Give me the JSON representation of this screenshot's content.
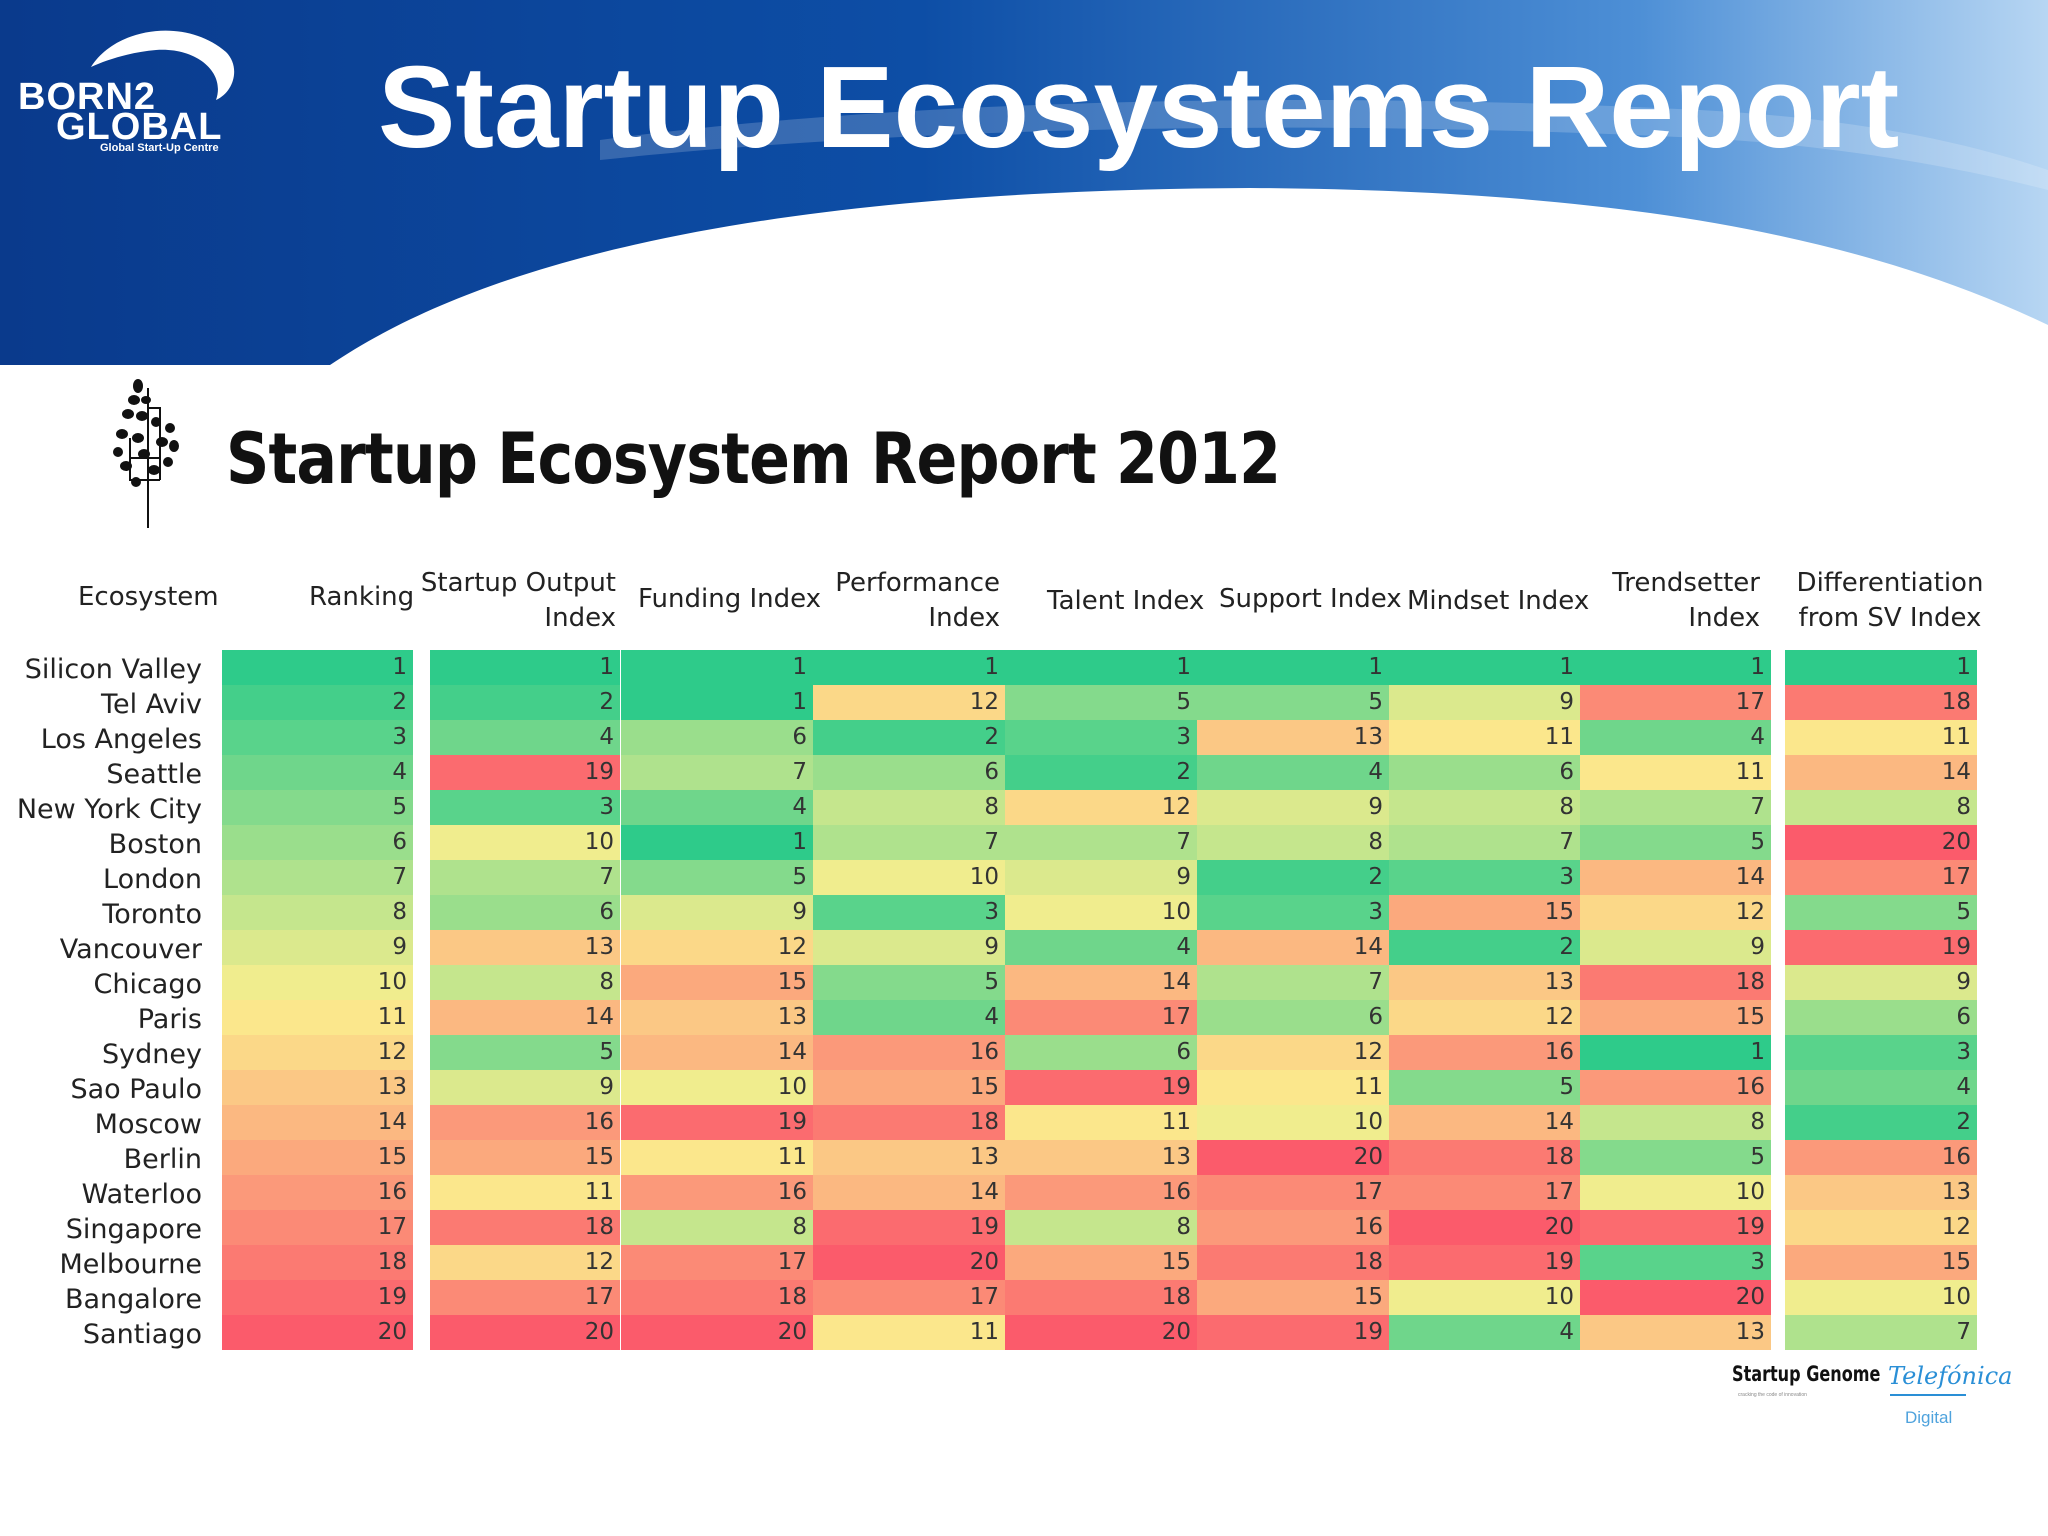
{
  "slide_title": "Startup Ecosystems Report",
  "logo": {
    "line1": "BORN2",
    "line2": "GLOBAL",
    "tagline": "Global Start-Up Centre"
  },
  "report_title": "Startup Ecosystem Report 2012",
  "colors": {
    "banner_dark": "#0b3f93",
    "banner_light": "#5aa0e0",
    "scale_best": "#2ecb8a",
    "scale_mid": "#fbef8e",
    "scale_worst": "#fb5b6b"
  },
  "table": {
    "headers": {
      "ecosystem": "Ecosystem",
      "ranking": "Ranking",
      "output": [
        "Startup Output",
        "Index"
      ],
      "funding": "Funding Index",
      "performance": [
        "Performance",
        "Index"
      ],
      "talent": "Talent Index",
      "support": "Support Index",
      "mindset": "Mindset Index",
      "trendsetter": [
        "Trendsetter",
        "Index"
      ],
      "differentiation": [
        "Differentiation",
        "from SV Index"
      ]
    },
    "rows": [
      {
        "city": "Silicon Valley",
        "ranking": 1,
        "output": 1,
        "funding": 1,
        "performance": 1,
        "talent": 1,
        "support": 1,
        "mindset": 1,
        "trendsetter": 1,
        "differentiation": 1
      },
      {
        "city": "Tel Aviv",
        "ranking": 2,
        "output": 2,
        "funding": 1,
        "performance": 12,
        "talent": 5,
        "support": 5,
        "mindset": 9,
        "trendsetter": 17,
        "differentiation": 18
      },
      {
        "city": "Los Angeles",
        "ranking": 3,
        "output": 4,
        "funding": 6,
        "performance": 2,
        "talent": 3,
        "support": 13,
        "mindset": 11,
        "trendsetter": 4,
        "differentiation": 11
      },
      {
        "city": "Seattle",
        "ranking": 4,
        "output": 19,
        "funding": 7,
        "performance": 6,
        "talent": 2,
        "support": 4,
        "mindset": 6,
        "trendsetter": 11,
        "differentiation": 14
      },
      {
        "city": "New York City",
        "ranking": 5,
        "output": 3,
        "funding": 4,
        "performance": 8,
        "talent": 12,
        "support": 9,
        "mindset": 8,
        "trendsetter": 7,
        "differentiation": 8
      },
      {
        "city": "Boston",
        "ranking": 6,
        "output": 10,
        "funding": 1,
        "performance": 7,
        "talent": 7,
        "support": 8,
        "mindset": 7,
        "trendsetter": 5,
        "differentiation": 20
      },
      {
        "city": "London",
        "ranking": 7,
        "output": 7,
        "funding": 5,
        "performance": 10,
        "talent": 9,
        "support": 2,
        "mindset": 3,
        "trendsetter": 14,
        "differentiation": 17
      },
      {
        "city": "Toronto",
        "ranking": 8,
        "output": 6,
        "funding": 9,
        "performance": 3,
        "talent": 10,
        "support": 3,
        "mindset": 15,
        "trendsetter": 12,
        "differentiation": 5
      },
      {
        "city": "Vancouver",
        "ranking": 9,
        "output": 13,
        "funding": 12,
        "performance": 9,
        "talent": 4,
        "support": 14,
        "mindset": 2,
        "trendsetter": 9,
        "differentiation": 19
      },
      {
        "city": "Chicago",
        "ranking": 10,
        "output": 8,
        "funding": 15,
        "performance": 5,
        "talent": 14,
        "support": 7,
        "mindset": 13,
        "trendsetter": 18,
        "differentiation": 9
      },
      {
        "city": "Paris",
        "ranking": 11,
        "output": 14,
        "funding": 13,
        "performance": 4,
        "talent": 17,
        "support": 6,
        "mindset": 12,
        "trendsetter": 15,
        "differentiation": 6
      },
      {
        "city": "Sydney",
        "ranking": 12,
        "output": 5,
        "funding": 14,
        "performance": 16,
        "talent": 6,
        "support": 12,
        "mindset": 16,
        "trendsetter": 1,
        "differentiation": 3
      },
      {
        "city": "Sao Paulo",
        "ranking": 13,
        "output": 9,
        "funding": 10,
        "performance": 15,
        "talent": 19,
        "support": 11,
        "mindset": 5,
        "trendsetter": 16,
        "differentiation": 4
      },
      {
        "city": "Moscow",
        "ranking": 14,
        "output": 16,
        "funding": 19,
        "performance": 18,
        "talent": 11,
        "support": 10,
        "mindset": 14,
        "trendsetter": 8,
        "differentiation": 2
      },
      {
        "city": "Berlin",
        "ranking": 15,
        "output": 15,
        "funding": 11,
        "performance": 13,
        "talent": 13,
        "support": 20,
        "mindset": 18,
        "trendsetter": 5,
        "differentiation": 16
      },
      {
        "city": "Waterloo",
        "ranking": 16,
        "output": 11,
        "funding": 16,
        "performance": 14,
        "talent": 16,
        "support": 17,
        "mindset": 17,
        "trendsetter": 10,
        "differentiation": 13
      },
      {
        "city": "Singapore",
        "ranking": 17,
        "output": 18,
        "funding": 8,
        "performance": 19,
        "talent": 8,
        "support": 16,
        "mindset": 20,
        "trendsetter": 19,
        "differentiation": 12
      },
      {
        "city": "Melbourne",
        "ranking": 18,
        "output": 12,
        "funding": 17,
        "performance": 20,
        "talent": 15,
        "support": 18,
        "mindset": 19,
        "trendsetter": 3,
        "differentiation": 15
      },
      {
        "city": "Bangalore",
        "ranking": 19,
        "output": 17,
        "funding": 18,
        "performance": 17,
        "talent": 18,
        "support": 15,
        "mindset": 10,
        "trendsetter": 20,
        "differentiation": 10
      },
      {
        "city": "Santiago",
        "ranking": 20,
        "output": 20,
        "funding": 20,
        "performance": 11,
        "talent": 20,
        "support": 19,
        "mindset": 4,
        "trendsetter": 13,
        "differentiation": 7
      }
    ]
  },
  "footer": {
    "startup_genome": "Startup Genome",
    "startup_genome_tagline": "cracking the code of innovation",
    "telefonica": "Telefónica",
    "telefonica_sub": "Digital"
  }
}
